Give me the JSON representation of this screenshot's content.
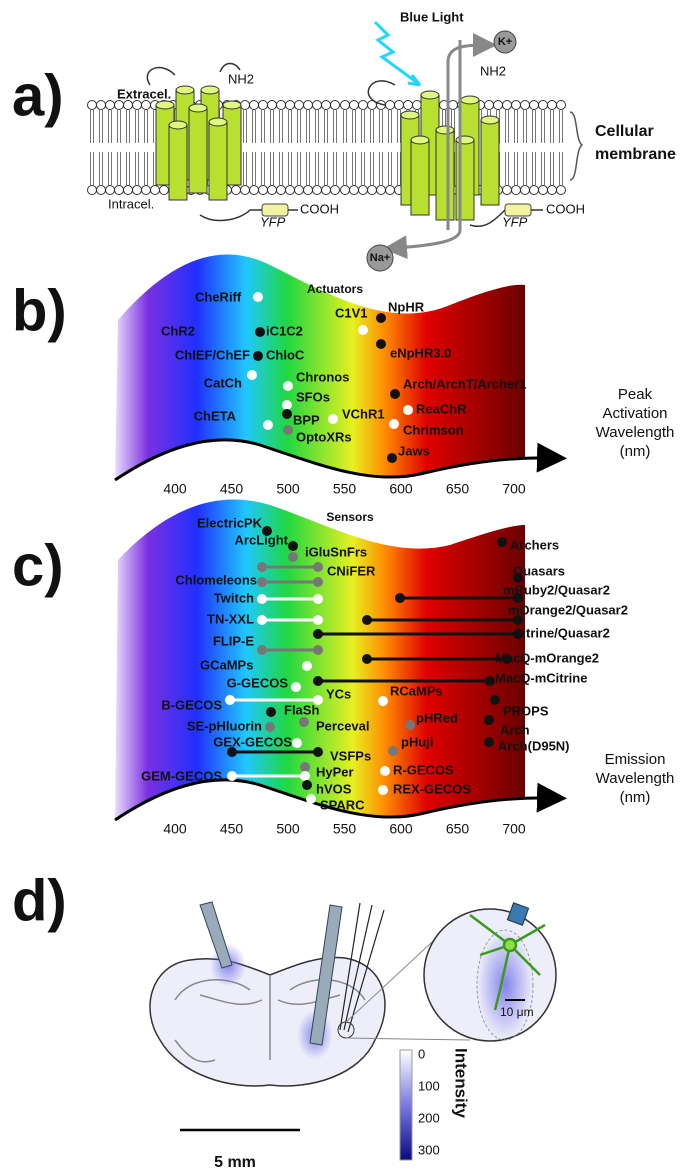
{
  "panel_a": {
    "label": "a)",
    "blue_light": "Blue Light",
    "potassium": "K+",
    "nh2_left": "NH2",
    "nh2_right": "NH2",
    "extracellular": "Extracel.",
    "intracellular": "Intracel.",
    "yfp_left": "YFP",
    "yfp_right": "YFP",
    "cooh_left": "COOH",
    "cooh_right": "COOH",
    "sodium": "Na+",
    "membrane": [
      "Cellular",
      "membrane"
    ]
  },
  "panel_b": {
    "label": "b)",
    "title": "Actuators",
    "items": [
      "CheRiff",
      "ChR2",
      "iC1C2",
      "C1V1",
      "NpHR",
      "ChIEF/ChEF",
      "ChloC",
      "eNpHR3.0",
      "CatCh",
      "Chronos",
      "Arch/ArchT/Archer1",
      "SFOs",
      "ChETA",
      "BPP",
      "VChR1",
      "ReaChR",
      "OptoXRs",
      "Chrimson",
      "Jaws"
    ],
    "axis_ticks": [
      400,
      450,
      500,
      550,
      600,
      650,
      700
    ],
    "axis_title": [
      "Peak",
      "Activation",
      "Wavelength",
      "(nm)"
    ]
  },
  "panel_c": {
    "label": "c)",
    "title": "Sensors",
    "items": [
      "ElectricPK",
      "ArcLight",
      "iGluSnFrs",
      "CNiFER",
      "Chlomeleons",
      "Twitch",
      "TN-XXL",
      "FLIP-E",
      "GCaMPs",
      "G-GECOS",
      "B-GECOS",
      "YCs",
      "FlaSh",
      "SE-pHluorin",
      "Perceval",
      "GEX-GECOS",
      "VSFPs",
      "HyPer",
      "GEM-GECOS",
      "hVOS",
      "SPARC",
      "RCaMPs",
      "pHRed",
      "pHuji",
      "R-GECOS",
      "REX-GECOS",
      "Archers",
      "Quasars",
      "mRuby2/Quasar2",
      "mOrange2/Quasar2",
      "Citrine/Quasar2",
      "MacQ-mOrange2",
      "MacQ-mCitrine",
      "PROPS",
      "Arch",
      "Arch(D95N)"
    ],
    "axis_ticks": [
      400,
      450,
      500,
      550,
      600,
      650,
      700
    ],
    "axis_title": [
      "Emission",
      "Wavelength",
      "(nm)"
    ]
  },
  "panel_d": {
    "label": "d)",
    "scale_zoom": "10 μm",
    "colorbar_ticks": [
      0,
      100,
      200,
      300
    ],
    "colorbar_title": "Intensity",
    "scale_brain": "5 mm"
  }
}
